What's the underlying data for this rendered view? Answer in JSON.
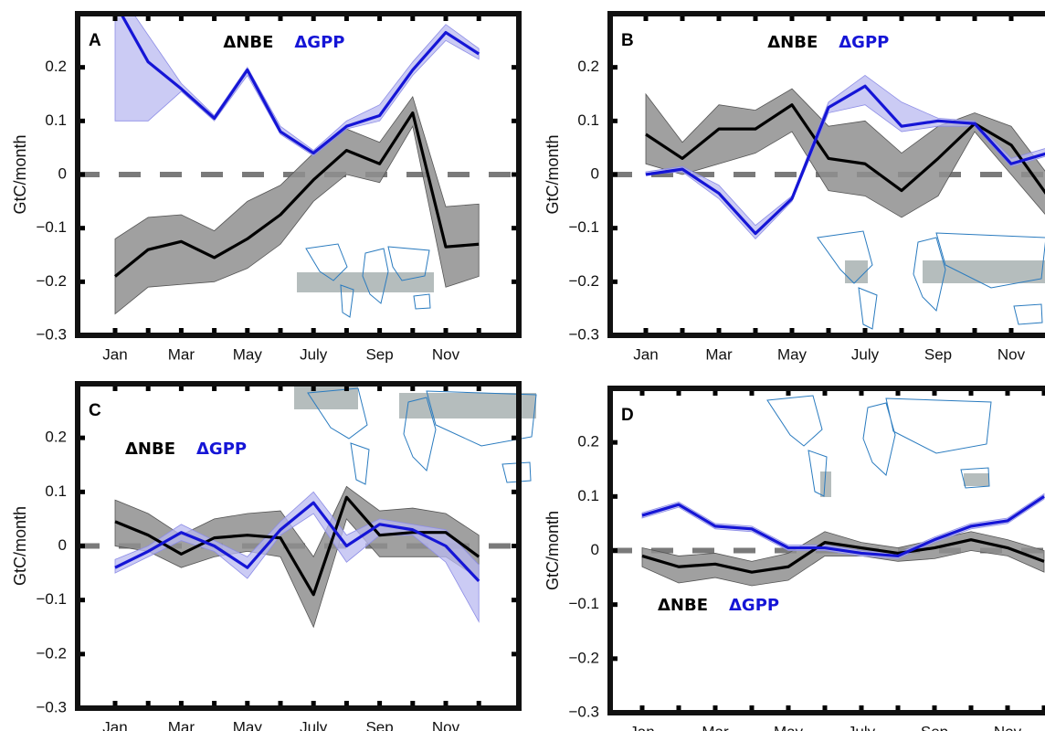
{
  "chart_data": [
    {
      "type": "line",
      "panel_label": "A",
      "ylabel": "GtC/month",
      "legend": "top",
      "categories": [
        "Jan",
        null,
        "Mar",
        null,
        "May",
        null,
        "July",
        null,
        "Sep",
        null,
        "Nov",
        null
      ],
      "ylim": [
        -0.3,
        0.3
      ],
      "yticks": [
        {
          "value": -0.3,
          "label": "−0.3"
        },
        {
          "value": -0.2,
          "label": "−0.2"
        },
        {
          "value": -0.1,
          "label": "−0.1"
        },
        0,
        0.1,
        0.2
      ],
      "series": [
        {
          "name": "ΔNBE",
          "color": "#000000",
          "band_color": "#8f8f8f",
          "values": [
            -0.19,
            -0.14,
            -0.125,
            -0.155,
            -0.12,
            -0.075,
            -0.01,
            0.045,
            0.02,
            0.115,
            -0.135,
            -0.13
          ],
          "lower": [
            -0.26,
            -0.21,
            -0.205,
            -0.2,
            -0.175,
            -0.13,
            -0.05,
            0.0,
            -0.015,
            0.09,
            -0.21,
            -0.19
          ],
          "upper": [
            -0.12,
            -0.08,
            -0.075,
            -0.105,
            -0.05,
            -0.02,
            0.04,
            0.085,
            0.06,
            0.145,
            -0.06,
            -0.055
          ]
        },
        {
          "name": "ΔGPP",
          "color": "#1515d6",
          "band_color": "#b9b9f0",
          "values": [
            0.32,
            0.21,
            0.16,
            0.105,
            0.195,
            0.08,
            0.04,
            0.09,
            0.11,
            0.195,
            0.265,
            0.225
          ],
          "lower": [
            0.1,
            0.1,
            0.155,
            0.1,
            0.185,
            0.075,
            0.035,
            0.085,
            0.1,
            0.185,
            0.25,
            0.215
          ],
          "upper": [
            0.35,
            0.26,
            0.17,
            0.11,
            0.2,
            0.09,
            0.045,
            0.1,
            0.13,
            0.21,
            0.28,
            0.235
          ]
        }
      ]
    },
    {
      "type": "line",
      "panel_label": "B",
      "ylabel": "GtC/month",
      "legend": "top",
      "categories": [
        "Jan",
        null,
        "Mar",
        null,
        "May",
        null,
        "July",
        null,
        "Sep",
        null,
        "Nov",
        null
      ],
      "ylim": [
        -0.3,
        0.3
      ],
      "yticks": [
        {
          "value": -0.3,
          "label": "−0.3"
        },
        {
          "value": -0.2,
          "label": "−0.2"
        },
        {
          "value": -0.1,
          "label": "−0.1"
        },
        0,
        0.1,
        0.2
      ],
      "series": [
        {
          "name": "ΔNBE",
          "color": "#000000",
          "band_color": "#8f8f8f",
          "values": [
            0.075,
            0.03,
            0.085,
            0.085,
            0.13,
            0.03,
            0.02,
            -0.03,
            0.03,
            0.095,
            0.055,
            -0.04
          ],
          "lower": [
            0.02,
            0.0,
            0.02,
            0.04,
            0.08,
            -0.03,
            -0.04,
            -0.08,
            -0.04,
            0.08,
            0.0,
            -0.08
          ],
          "upper": [
            0.15,
            0.06,
            0.13,
            0.12,
            0.16,
            0.09,
            0.1,
            0.04,
            0.09,
            0.115,
            0.09,
            0.0
          ]
        },
        {
          "name": "ΔGPP",
          "color": "#1515d6",
          "band_color": "#b9b9f0",
          "values": [
            0.0,
            0.01,
            -0.035,
            -0.11,
            -0.045,
            0.125,
            0.165,
            0.09,
            0.1,
            0.095,
            0.02,
            0.04
          ],
          "lower": [
            0.0,
            0.005,
            -0.045,
            -0.12,
            -0.05,
            0.115,
            0.13,
            0.08,
            0.09,
            0.09,
            0.015,
            0.035
          ],
          "upper": [
            0.005,
            0.015,
            -0.02,
            -0.095,
            -0.04,
            0.135,
            0.185,
            0.135,
            0.105,
            0.1,
            0.03,
            0.05
          ]
        }
      ]
    },
    {
      "type": "line",
      "panel_label": "C",
      "ylabel": "GtC/month",
      "legend": "upper left",
      "categories": [
        "Jan",
        null,
        "Mar",
        null,
        "May",
        null,
        "July",
        null,
        "Sep",
        null,
        "Nov",
        null
      ],
      "ylim": [
        -0.3,
        0.3
      ],
      "yticks": [
        {
          "value": -0.3,
          "label": "−0.3"
        },
        {
          "value": -0.2,
          "label": "−0.2"
        },
        {
          "value": -0.1,
          "label": "−0.1"
        },
        0,
        0.1,
        0.2
      ],
      "series": [
        {
          "name": "ΔNBE",
          "color": "#000000",
          "band_color": "#8f8f8f",
          "values": [
            0.045,
            0.02,
            -0.015,
            0.015,
            0.02,
            0.015,
            -0.09,
            0.09,
            0.02,
            0.025,
            0.025,
            -0.02
          ],
          "lower": [
            0.0,
            -0.01,
            -0.04,
            -0.02,
            -0.01,
            -0.02,
            -0.15,
            0.05,
            -0.02,
            -0.02,
            -0.02,
            -0.06
          ],
          "upper": [
            0.085,
            0.06,
            0.02,
            0.05,
            0.06,
            0.065,
            -0.02,
            0.11,
            0.065,
            0.07,
            0.06,
            0.02
          ]
        },
        {
          "name": "ΔGPP",
          "color": "#1515d6",
          "band_color": "#b9b9f0",
          "values": [
            -0.04,
            -0.01,
            0.025,
            0.0,
            -0.04,
            0.03,
            0.08,
            0.0,
            0.04,
            0.03,
            0.0,
            -0.065
          ],
          "lower": [
            -0.05,
            -0.02,
            0.01,
            -0.01,
            -0.06,
            0.02,
            0.06,
            -0.03,
            0.02,
            0.02,
            -0.03,
            -0.14
          ],
          "upper": [
            -0.025,
            0.0,
            0.04,
            0.01,
            -0.02,
            0.045,
            0.1,
            0.02,
            0.05,
            0.04,
            0.03,
            -0.035
          ]
        }
      ]
    },
    {
      "type": "line",
      "panel_label": "D",
      "ylabel": "GtC/month",
      "legend": "lower left",
      "categories": [
        "Jan",
        null,
        "Mar",
        null,
        "May",
        null,
        "July",
        null,
        "Sep",
        null,
        "Nov",
        null
      ],
      "ylim": [
        -0.3,
        0.3
      ],
      "yticks": [
        {
          "value": -0.3,
          "label": "−0.3"
        },
        {
          "value": -0.2,
          "label": "−0.2"
        },
        {
          "value": -0.1,
          "label": "−0.1"
        },
        0,
        0.1,
        0.2
      ],
      "series": [
        {
          "name": "ΔNBE",
          "color": "#000000",
          "band_color": "#8f8f8f",
          "values": [
            -0.01,
            -0.03,
            -0.025,
            -0.04,
            -0.03,
            0.015,
            0.005,
            -0.005,
            0.005,
            0.02,
            0.005,
            -0.02
          ],
          "lower": [
            -0.03,
            -0.06,
            -0.05,
            -0.065,
            -0.055,
            -0.01,
            -0.01,
            -0.02,
            -0.015,
            0.0,
            -0.01,
            -0.04
          ],
          "upper": [
            0.005,
            -0.01,
            -0.005,
            -0.02,
            -0.005,
            0.035,
            0.015,
            0.005,
            0.02,
            0.035,
            0.02,
            0.0
          ]
        },
        {
          "name": "ΔGPP",
          "color": "#1515d6",
          "band_color": "#b9b9f0",
          "values": [
            0.065,
            0.085,
            0.045,
            0.04,
            0.005,
            0.005,
            -0.005,
            -0.01,
            0.02,
            0.045,
            0.055,
            0.1
          ],
          "lower": [
            0.06,
            0.08,
            0.04,
            0.035,
            0.0,
            0.0,
            -0.01,
            -0.015,
            0.015,
            0.04,
            0.05,
            0.095
          ],
          "upper": [
            0.07,
            0.09,
            0.05,
            0.045,
            0.01,
            0.01,
            0.0,
            -0.005,
            0.025,
            0.05,
            0.06,
            0.105
          ]
        }
      ]
    }
  ]
}
